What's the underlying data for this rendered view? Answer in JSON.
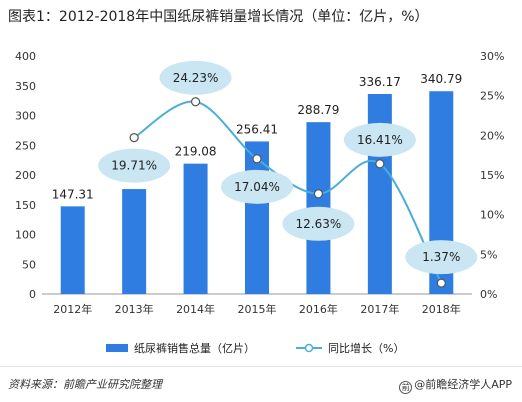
{
  "title": "图表1：2012-2018年中国纸尿裤销量增长情况（单位：亿片，%）",
  "source": "资料来源：前瞻产业研究院整理",
  "brand": "@前瞻经济学人APP",
  "colors": {
    "bar": "#2f7de1",
    "line": "#4aaed9",
    "bubble": "#c9e6f2",
    "axis": "#333333"
  },
  "chart_data": {
    "type": "bar",
    "categories": [
      "2012年",
      "2013年",
      "2014年",
      "2015年",
      "2016年",
      "2017年",
      "2018年"
    ],
    "series": [
      {
        "name": "纸尿裤销售总量（亿片）",
        "type": "bar",
        "axis": "left",
        "values": [
          147.31,
          176.35,
          219.08,
          256.41,
          288.79,
          336.17,
          340.79
        ],
        "labels": [
          "147.31",
          null,
          "219.08",
          "256.41",
          "288.79",
          "336.17",
          "340.79"
        ]
      },
      {
        "name": "同比增长（%）",
        "type": "line",
        "axis": "right",
        "values": [
          null,
          19.71,
          24.23,
          17.04,
          12.63,
          16.41,
          1.37
        ],
        "labels": [
          null,
          "19.71%",
          "24.23%",
          "17.04%",
          "12.63%",
          "16.41%",
          "1.37%"
        ]
      }
    ],
    "y_left": {
      "min": 0,
      "max": 400,
      "ticks": [
        "0",
        "50",
        "100",
        "150",
        "200",
        "250",
        "300",
        "350",
        "400"
      ]
    },
    "y_right": {
      "min": 0,
      "max": 30,
      "ticks": [
        "0%",
        "5%",
        "10%",
        "15%",
        "20%",
        "25%",
        "30%"
      ]
    },
    "grid": false,
    "legend": "bottom"
  }
}
